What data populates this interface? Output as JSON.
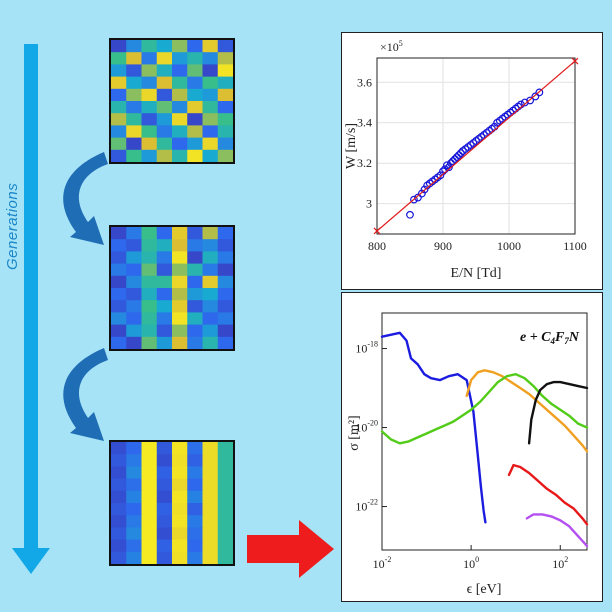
{
  "generations_label": "Generations",
  "colors": {
    "background": "#a6e3f7",
    "generation_arrow": "#12a8e8",
    "curved_arrow": "#1f6db5",
    "red_arrow": "#ee1c1c",
    "viridis_dark": "#3e26a8",
    "viridis_yellow": "#f9f020"
  },
  "matrices": [
    {
      "name": "generation-1",
      "grid": [
        [
          0.1,
          0.3,
          0.55,
          0.4,
          0.7,
          0.2,
          0.85,
          0.15
        ],
        [
          0.6,
          0.8,
          0.25,
          0.9,
          0.35,
          0.5,
          0.3,
          0.75
        ],
        [
          0.35,
          0.15,
          0.7,
          0.45,
          0.2,
          0.65,
          0.1,
          0.95
        ],
        [
          0.85,
          0.4,
          0.3,
          0.8,
          0.55,
          0.25,
          0.6,
          0.45
        ],
        [
          0.2,
          0.7,
          0.9,
          0.15,
          0.75,
          0.4,
          0.35,
          0.8
        ],
        [
          0.5,
          0.25,
          0.45,
          0.65,
          0.3,
          0.85,
          0.55,
          0.2
        ],
        [
          0.75,
          0.55,
          0.15,
          0.35,
          0.9,
          0.1,
          0.7,
          0.6
        ],
        [
          0.3,
          0.9,
          0.6,
          0.25,
          0.45,
          0.75,
          0.2,
          0.5
        ],
        [
          0.65,
          0.1,
          0.8,
          0.55,
          0.2,
          0.35,
          0.9,
          0.3
        ],
        [
          0.15,
          0.6,
          0.35,
          0.75,
          0.5,
          0.95,
          0.4,
          0.7
        ]
      ]
    },
    {
      "name": "generation-2",
      "grid": [
        [
          0.1,
          0.25,
          0.6,
          0.2,
          0.85,
          0.15,
          0.75,
          0.2
        ],
        [
          0.2,
          0.15,
          0.55,
          0.45,
          0.8,
          0.25,
          0.3,
          0.15
        ],
        [
          0.15,
          0.35,
          0.5,
          0.25,
          0.95,
          0.1,
          0.45,
          0.25
        ],
        [
          0.25,
          0.2,
          0.65,
          0.15,
          0.7,
          0.5,
          0.25,
          0.1
        ],
        [
          0.1,
          0.3,
          0.55,
          0.55,
          0.9,
          0.2,
          0.85,
          0.3
        ],
        [
          0.2,
          0.15,
          0.45,
          0.2,
          0.75,
          0.35,
          0.4,
          0.2
        ],
        [
          0.15,
          0.25,
          0.6,
          0.4,
          0.85,
          0.15,
          0.3,
          0.15
        ],
        [
          0.3,
          0.2,
          0.55,
          0.25,
          0.95,
          0.45,
          0.2,
          0.25
        ],
        [
          0.1,
          0.35,
          0.5,
          0.15,
          0.7,
          0.2,
          0.35,
          0.1
        ],
        [
          0.2,
          0.1,
          0.65,
          0.35,
          0.8,
          0.25,
          0.5,
          0.2
        ]
      ]
    },
    {
      "name": "generation-3",
      "grid": [
        [
          0.12,
          0.2,
          0.98,
          0.15,
          0.95,
          0.22,
          0.92,
          0.55
        ],
        [
          0.15,
          0.25,
          0.98,
          0.12,
          0.93,
          0.18,
          0.92,
          0.55
        ],
        [
          0.12,
          0.3,
          0.98,
          0.18,
          0.95,
          0.25,
          0.92,
          0.55
        ],
        [
          0.15,
          0.22,
          0.98,
          0.15,
          0.9,
          0.2,
          0.92,
          0.55
        ],
        [
          0.12,
          0.28,
          0.98,
          0.12,
          0.95,
          0.28,
          0.92,
          0.55
        ],
        [
          0.15,
          0.2,
          0.98,
          0.18,
          0.93,
          0.18,
          0.92,
          0.55
        ],
        [
          0.12,
          0.25,
          0.98,
          0.15,
          0.95,
          0.25,
          0.92,
          0.55
        ],
        [
          0.15,
          0.3,
          0.98,
          0.12,
          0.9,
          0.22,
          0.92,
          0.55
        ],
        [
          0.12,
          0.22,
          0.98,
          0.18,
          0.95,
          0.2,
          0.92,
          0.55
        ],
        [
          0.15,
          0.28,
          0.98,
          0.15,
          0.93,
          0.25,
          0.92,
          0.55
        ]
      ]
    }
  ],
  "chart_data": [
    {
      "type": "scatter",
      "xlabel": "E/N [Td]",
      "ylabel": "W [m/s]",
      "exponent_label": "×10",
      "exponent_power": "5",
      "xlim": [
        800,
        1100
      ],
      "ylim": [
        2.85,
        3.72
      ],
      "xticks": [
        "800",
        "900",
        "1000",
        "1100"
      ],
      "yticks": [
        "3",
        "3.2",
        "3.4",
        "3.6"
      ],
      "xtick_values": [
        800,
        900,
        1000,
        1100
      ],
      "ytick_values": [
        3.0,
        3.2,
        3.4,
        3.6
      ],
      "grid": true,
      "series": [
        {
          "kind": "markers",
          "color": "#1515d8",
          "x": [
            850,
            856,
            862,
            868,
            872,
            876,
            880,
            884,
            888,
            892,
            896,
            900,
            903,
            906,
            909,
            912,
            915,
            918,
            921,
            924,
            927,
            930,
            934,
            938,
            942,
            946,
            950,
            954,
            958,
            962,
            966,
            970,
            974,
            978,
            982,
            986,
            990,
            994,
            998,
            1002,
            1006,
            1010,
            1014,
            1018,
            1024,
            1032,
            1040,
            1046
          ],
          "y": [
            2.945,
            3.02,
            3.03,
            3.05,
            3.07,
            3.09,
            3.1,
            3.11,
            3.12,
            3.13,
            3.14,
            3.16,
            3.17,
            3.19,
            3.18,
            3.2,
            3.21,
            3.22,
            3.23,
            3.24,
            3.25,
            3.26,
            3.27,
            3.28,
            3.29,
            3.3,
            3.31,
            3.32,
            3.33,
            3.34,
            3.35,
            3.36,
            3.37,
            3.38,
            3.4,
            3.41,
            3.42,
            3.43,
            3.44,
            3.45,
            3.46,
            3.47,
            3.48,
            3.49,
            3.5,
            3.51,
            3.53,
            3.55
          ]
        },
        {
          "kind": "line",
          "color": "#e01a1a",
          "x": [
            800,
            1100
          ],
          "y": [
            2.865,
            3.705
          ]
        }
      ]
    },
    {
      "type": "line",
      "annotation": "e + C4F7N",
      "ylabel": "σ [m²]",
      "xlabel": "ϵ [eV]",
      "xscale": "log",
      "yscale": "log",
      "xlim_exp": [
        -2,
        2.6
      ],
      "ylim_exp": [
        -23.1,
        -17.1
      ],
      "xticks": [
        {
          "base": "10",
          "exp": "-2"
        },
        {
          "base": "10",
          "exp": "0"
        },
        {
          "base": "10",
          "exp": "2"
        }
      ],
      "yticks": [
        {
          "base": "10",
          "exp": "-18"
        },
        {
          "base": "10",
          "exp": "-20"
        },
        {
          "base": "10",
          "exp": "-22"
        }
      ],
      "xtick_exp": [
        -2,
        0,
        2
      ],
      "ytick_exp": [
        -18,
        -20,
        -22
      ],
      "grid": false,
      "series": [
        {
          "color": "#1c1ce0",
          "x_exp": [
            -2.0,
            -1.6,
            -1.45,
            -1.35,
            -1.2,
            -1.05,
            -0.9,
            -0.7,
            -0.5,
            -0.3,
            -0.1,
            0.05,
            0.15,
            0.22,
            0.28,
            0.32
          ],
          "y_exp": [
            -17.7,
            -17.6,
            -17.8,
            -18.25,
            -18.4,
            -18.65,
            -18.75,
            -18.8,
            -18.7,
            -18.65,
            -18.8,
            -19.6,
            -20.7,
            -21.5,
            -22.1,
            -22.4
          ]
        },
        {
          "color": "#f0a020",
          "x_exp": [
            -0.1,
            0.0,
            0.15,
            0.3,
            0.5,
            0.7,
            0.9,
            1.1,
            1.3,
            1.5,
            1.7,
            1.9,
            2.1,
            2.3,
            2.5,
            2.6
          ],
          "y_exp": [
            -19.2,
            -18.8,
            -18.6,
            -18.55,
            -18.6,
            -18.7,
            -18.85,
            -19.0,
            -19.15,
            -19.35,
            -19.55,
            -19.75,
            -19.95,
            -20.2,
            -20.45,
            -20.6
          ]
        },
        {
          "color": "#52cc18",
          "x_exp": [
            -2.0,
            -1.8,
            -1.6,
            -1.4,
            -1.2,
            -1.0,
            -0.8,
            -0.6,
            -0.4,
            -0.2,
            0.0,
            0.2,
            0.4,
            0.6,
            0.8,
            1.0,
            1.2,
            1.4,
            1.6,
            1.8,
            2.0,
            2.2,
            2.4,
            2.6
          ],
          "y_exp": [
            -20.1,
            -20.3,
            -20.4,
            -20.35,
            -20.25,
            -20.15,
            -20.05,
            -19.95,
            -19.85,
            -19.7,
            -19.55,
            -19.35,
            -19.1,
            -18.85,
            -18.7,
            -18.65,
            -18.75,
            -18.95,
            -19.2,
            -19.4,
            -19.55,
            -19.7,
            -19.9,
            -20.0
          ]
        },
        {
          "color": "#111111",
          "x_exp": [
            1.3,
            1.35,
            1.45,
            1.55,
            1.7,
            1.85,
            2.0,
            2.2,
            2.4,
            2.6
          ],
          "y_exp": [
            -20.4,
            -19.8,
            -19.3,
            -19.05,
            -18.9,
            -18.85,
            -18.85,
            -18.9,
            -18.95,
            -19.0
          ]
        },
        {
          "color": "#e81818",
          "x_exp": [
            0.85,
            0.95,
            1.1,
            1.3,
            1.5,
            1.7,
            1.9,
            2.1,
            2.3,
            2.5,
            2.6
          ],
          "y_exp": [
            -21.2,
            -20.95,
            -21.0,
            -21.15,
            -21.35,
            -21.55,
            -21.7,
            -21.9,
            -22.05,
            -22.3,
            -22.45
          ]
        },
        {
          "color": "#b450f0",
          "x_exp": [
            1.25,
            1.4,
            1.6,
            1.8,
            2.0,
            2.2,
            2.4,
            2.6
          ],
          "y_exp": [
            -22.3,
            -22.2,
            -22.2,
            -22.25,
            -22.35,
            -22.5,
            -22.75,
            -23.0
          ]
        }
      ]
    }
  ]
}
